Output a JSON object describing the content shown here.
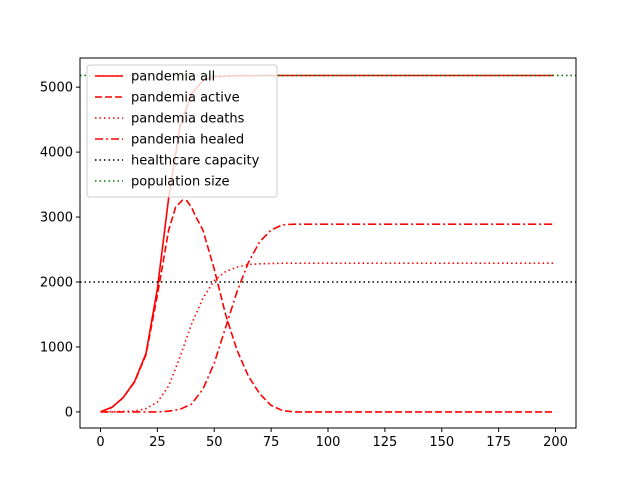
{
  "chart_data": {
    "type": "line",
    "title": "",
    "xlabel": "",
    "ylabel": "",
    "xlim": [
      -9,
      209
    ],
    "ylim": [
      -248,
      5449
    ],
    "xticks": [
      0,
      25,
      50,
      75,
      100,
      125,
      150,
      175,
      200
    ],
    "yticks": [
      0,
      1000,
      2000,
      3000,
      4000,
      5000
    ],
    "legend": {
      "placement": "upper-left"
    },
    "series": [
      {
        "name": "pandemia all",
        "color": "#ff0000",
        "dash": "solid",
        "x": [
          0,
          5,
          10,
          15,
          20,
          25,
          30,
          35,
          40,
          45,
          50,
          55,
          60,
          70,
          80,
          100,
          150,
          199
        ],
        "y": [
          0,
          70,
          220,
          470,
          900,
          1900,
          3300,
          4400,
          4900,
          5100,
          5160,
          5170,
          5175,
          5178,
          5180,
          5180,
          5180,
          5180
        ]
      },
      {
        "name": "pandemia active",
        "color": "#ff0000",
        "dash": "dashed",
        "x": [
          0,
          5,
          10,
          15,
          20,
          25,
          30,
          33,
          36,
          38,
          40,
          42,
          45,
          50,
          55,
          60,
          65,
          70,
          75,
          80,
          85,
          100,
          150,
          199
        ],
        "y": [
          0,
          70,
          220,
          460,
          880,
          1800,
          2800,
          3150,
          3260,
          3250,
          3150,
          3000,
          2800,
          2200,
          1500,
          950,
          550,
          280,
          100,
          20,
          0,
          0,
          0,
          0
        ]
      },
      {
        "name": "pandemia deaths",
        "color": "#ff0000",
        "dash": "dotted",
        "x": [
          0,
          15,
          20,
          25,
          30,
          35,
          40,
          45,
          50,
          55,
          60,
          65,
          70,
          80,
          100,
          150,
          199
        ],
        "y": [
          0,
          10,
          50,
          150,
          400,
          850,
          1350,
          1750,
          2020,
          2160,
          2230,
          2270,
          2280,
          2290,
          2290,
          2290,
          2290
        ]
      },
      {
        "name": "pandemia healed",
        "color": "#ff0000",
        "dash": "dashdot",
        "x": [
          0,
          25,
          30,
          35,
          40,
          45,
          50,
          55,
          60,
          65,
          70,
          75,
          80,
          85,
          90,
          100,
          150,
          199
        ],
        "y": [
          0,
          0,
          10,
          40,
          120,
          350,
          750,
          1300,
          1850,
          2300,
          2620,
          2800,
          2880,
          2890,
          2890,
          2890,
          2890,
          2890
        ]
      },
      {
        "name": "healthcare capacity",
        "color": "#000000",
        "dash": "dotted",
        "horizontal": 2000
      },
      {
        "name": "population size",
        "color": "#008000",
        "dash": "dotted",
        "horizontal": 5180
      }
    ]
  }
}
